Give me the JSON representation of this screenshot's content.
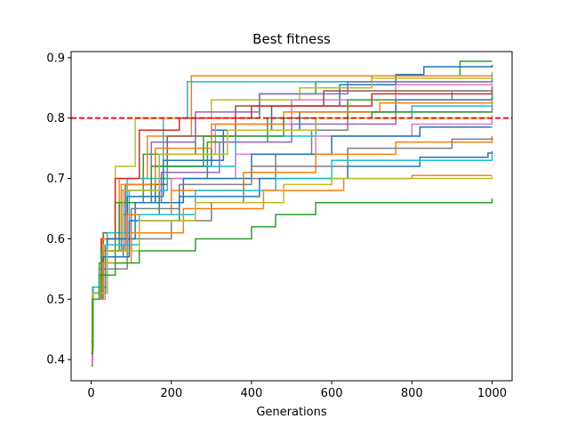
{
  "chart_data": {
    "type": "line",
    "title": "Best fitness",
    "xlabel": "Generations",
    "ylabel": "",
    "xlim": [
      -50,
      1050
    ],
    "ylim": [
      0.365,
      0.91
    ],
    "xticks": [
      0,
      200,
      400,
      600,
      800,
      1000
    ],
    "yticks": [
      0.4,
      0.5,
      0.6,
      0.7,
      0.8,
      0.9
    ],
    "xtick_labels": [
      "0",
      "200",
      "400",
      "600",
      "800",
      "1000"
    ],
    "ytick_labels": [
      "0.4",
      "0.5",
      "0.6",
      "0.7",
      "0.8",
      "0.9"
    ],
    "grid": false,
    "legend": "none",
    "threshold": {
      "y": 0.8,
      "color": "#ff0000",
      "style": "dashed"
    },
    "palette": [
      "#1f77b4",
      "#ff7f0e",
      "#2ca02c",
      "#d62728",
      "#9467bd",
      "#8c564b",
      "#e377c2",
      "#7f7f7f",
      "#bcbd22",
      "#17becf"
    ],
    "series": [
      {
        "color": "#2ca02c",
        "points": [
          [
            0,
            0.42
          ],
          [
            3,
            0.5
          ],
          [
            20,
            0.56
          ],
          [
            60,
            0.66
          ],
          [
            130,
            0.74
          ],
          [
            260,
            0.8
          ],
          [
            420,
            0.84
          ],
          [
            560,
            0.86
          ],
          [
            700,
            0.87
          ],
          [
            920,
            0.894
          ],
          [
            1000,
            0.894
          ]
        ]
      },
      {
        "color": "#1f77b4",
        "points": [
          [
            0,
            0.41
          ],
          [
            4,
            0.51
          ],
          [
            30,
            0.58
          ],
          [
            80,
            0.66
          ],
          [
            160,
            0.72
          ],
          [
            300,
            0.78
          ],
          [
            450,
            0.82
          ],
          [
            620,
            0.855
          ],
          [
            760,
            0.872
          ],
          [
            830,
            0.885
          ],
          [
            1000,
            0.888
          ]
        ]
      },
      {
        "color": "#ff7f0e",
        "points": [
          [
            0,
            0.4
          ],
          [
            3,
            0.5
          ],
          [
            25,
            0.6
          ],
          [
            70,
            0.7
          ],
          [
            140,
            0.77
          ],
          [
            250,
            0.87
          ],
          [
            1000,
            0.876
          ]
        ]
      },
      {
        "color": "#17becf",
        "points": [
          [
            0,
            0.43
          ],
          [
            5,
            0.52
          ],
          [
            40,
            0.6
          ],
          [
            90,
            0.7
          ],
          [
            180,
            0.8
          ],
          [
            240,
            0.86
          ],
          [
            1000,
            0.872
          ]
        ]
      },
      {
        "color": "#bcbd22",
        "points": [
          [
            0,
            0.42
          ],
          [
            4,
            0.51
          ],
          [
            30,
            0.6
          ],
          [
            60,
            0.72
          ],
          [
            110,
            0.8
          ],
          [
            300,
            0.83
          ],
          [
            520,
            0.85
          ],
          [
            700,
            0.866
          ],
          [
            1000,
            0.868
          ]
        ]
      },
      {
        "color": "#9467bd",
        "points": [
          [
            0,
            0.41
          ],
          [
            3,
            0.5
          ],
          [
            28,
            0.58
          ],
          [
            75,
            0.68
          ],
          [
            150,
            0.76
          ],
          [
            260,
            0.81
          ],
          [
            420,
            0.84
          ],
          [
            640,
            0.86
          ],
          [
            1000,
            0.863
          ]
        ]
      },
      {
        "color": "#e377c2",
        "points": [
          [
            0,
            0.4
          ],
          [
            4,
            0.51
          ],
          [
            35,
            0.59
          ],
          [
            90,
            0.67
          ],
          [
            170,
            0.74
          ],
          [
            310,
            0.79
          ],
          [
            500,
            0.83
          ],
          [
            760,
            0.855
          ],
          [
            1000,
            0.858
          ]
        ]
      },
      {
        "color": "#8c564b",
        "points": [
          [
            0,
            0.42
          ],
          [
            5,
            0.52
          ],
          [
            30,
            0.61
          ],
          [
            85,
            0.69
          ],
          [
            190,
            0.77
          ],
          [
            360,
            0.82
          ],
          [
            580,
            0.845
          ],
          [
            1000,
            0.853
          ]
        ]
      },
      {
        "color": "#7f7f7f",
        "points": [
          [
            0,
            0.39
          ],
          [
            3,
            0.5
          ],
          [
            20,
            0.55
          ],
          [
            90,
            0.6
          ],
          [
            200,
            0.63
          ],
          [
            300,
            0.66
          ],
          [
            380,
            0.7
          ],
          [
            460,
            0.74
          ],
          [
            550,
            0.78
          ],
          [
            640,
            0.81
          ],
          [
            760,
            0.83
          ],
          [
            900,
            0.845
          ],
          [
            1000,
            0.85
          ]
        ]
      },
      {
        "color": "#d62728",
        "points": [
          [
            0,
            0.41
          ],
          [
            4,
            0.51
          ],
          [
            25,
            0.6
          ],
          [
            60,
            0.7
          ],
          [
            120,
            0.78
          ],
          [
            220,
            0.8
          ],
          [
            400,
            0.82
          ],
          [
            700,
            0.84
          ],
          [
            1000,
            0.845
          ]
        ]
      },
      {
        "color": "#2ca02c",
        "points": [
          [
            0,
            0.42
          ],
          [
            3,
            0.5
          ],
          [
            30,
            0.57
          ],
          [
            80,
            0.64
          ],
          [
            170,
            0.7
          ],
          [
            290,
            0.76
          ],
          [
            440,
            0.8
          ],
          [
            640,
            0.83
          ],
          [
            1000,
            0.84
          ]
        ]
      },
      {
        "color": "#1f77b4",
        "points": [
          [
            0,
            0.43
          ],
          [
            4,
            0.52
          ],
          [
            35,
            0.59
          ],
          [
            90,
            0.67
          ],
          [
            180,
            0.73
          ],
          [
            330,
            0.78
          ],
          [
            520,
            0.81
          ],
          [
            760,
            0.83
          ],
          [
            1000,
            0.835
          ]
        ]
      },
      {
        "color": "#ff7f0e",
        "points": [
          [
            0,
            0.41
          ],
          [
            3,
            0.51
          ],
          [
            28,
            0.6
          ],
          [
            75,
            0.69
          ],
          [
            160,
            0.75
          ],
          [
            300,
            0.79
          ],
          [
            480,
            0.81
          ],
          [
            720,
            0.825
          ],
          [
            1000,
            0.83
          ]
        ]
      },
      {
        "color": "#17becf",
        "points": [
          [
            0,
            0.42
          ],
          [
            5,
            0.52
          ],
          [
            40,
            0.61
          ],
          [
            95,
            0.68
          ],
          [
            190,
            0.72
          ],
          [
            360,
            0.77
          ],
          [
            560,
            0.8
          ],
          [
            800,
            0.82
          ],
          [
            1000,
            0.825
          ]
        ]
      },
      {
        "color": "#9467bd",
        "points": [
          [
            0,
            0.4
          ],
          [
            4,
            0.51
          ],
          [
            30,
            0.58
          ],
          [
            85,
            0.66
          ],
          [
            175,
            0.71
          ],
          [
            320,
            0.76
          ],
          [
            500,
            0.79
          ],
          [
            760,
            0.81
          ],
          [
            1000,
            0.82
          ]
        ]
      },
      {
        "color": "#2ca02c",
        "points": [
          [
            0,
            0.41
          ],
          [
            3,
            0.5
          ],
          [
            25,
            0.58
          ],
          [
            70,
            0.66
          ],
          [
            150,
            0.72
          ],
          [
            280,
            0.77
          ],
          [
            480,
            0.8
          ],
          [
            700,
            0.81
          ],
          [
            1000,
            0.81
          ]
        ]
      },
      {
        "color": "#bcbd22",
        "points": [
          [
            0,
            0.42
          ],
          [
            4,
            0.51
          ],
          [
            30,
            0.59
          ],
          [
            80,
            0.68
          ],
          [
            170,
            0.74
          ],
          [
            340,
            0.78
          ],
          [
            560,
            0.8
          ],
          [
            1000,
            0.805
          ]
        ]
      },
      {
        "color": "#e377c2",
        "points": [
          [
            0,
            0.4
          ],
          [
            3,
            0.5
          ],
          [
            35,
            0.57
          ],
          [
            95,
            0.64
          ],
          [
            200,
            0.7
          ],
          [
            360,
            0.74
          ],
          [
            560,
            0.77
          ],
          [
            800,
            0.79
          ],
          [
            1000,
            0.8
          ]
        ]
      },
      {
        "color": "#1f77b4",
        "points": [
          [
            0,
            0.42
          ],
          [
            4,
            0.51
          ],
          [
            40,
            0.6
          ],
          [
            110,
            0.66
          ],
          [
            230,
            0.7
          ],
          [
            400,
            0.74
          ],
          [
            600,
            0.77
          ],
          [
            820,
            0.785
          ],
          [
            1000,
            0.785
          ]
        ]
      },
      {
        "color": "#ff7f0e",
        "points": [
          [
            0,
            0.41
          ],
          [
            3,
            0.5
          ],
          [
            30,
            0.58
          ],
          [
            90,
            0.64
          ],
          [
            200,
            0.68
          ],
          [
            380,
            0.71
          ],
          [
            560,
            0.74
          ],
          [
            760,
            0.76
          ],
          [
            1000,
            0.77
          ]
        ]
      },
      {
        "color": "#7f7f7f",
        "points": [
          [
            0,
            0.41
          ],
          [
            4,
            0.51
          ],
          [
            35,
            0.58
          ],
          [
            100,
            0.65
          ],
          [
            220,
            0.69
          ],
          [
            400,
            0.72
          ],
          [
            640,
            0.75
          ],
          [
            900,
            0.765
          ],
          [
            1000,
            0.768
          ]
        ]
      },
      {
        "color": "#1f77b4",
        "points": [
          [
            0,
            0.42
          ],
          [
            3,
            0.5
          ],
          [
            30,
            0.57
          ],
          [
            95,
            0.63
          ],
          [
            220,
            0.67
          ],
          [
            420,
            0.7
          ],
          [
            640,
            0.72
          ],
          [
            820,
            0.735
          ],
          [
            990,
            0.742
          ],
          [
            1000,
            0.745
          ]
        ]
      },
      {
        "color": "#17becf",
        "points": [
          [
            0,
            0.43
          ],
          [
            4,
            0.51
          ],
          [
            40,
            0.59
          ],
          [
            120,
            0.64
          ],
          [
            260,
            0.68
          ],
          [
            460,
            0.7
          ],
          [
            600,
            0.73
          ],
          [
            1000,
            0.74
          ]
        ]
      },
      {
        "color": "#ff7f0e",
        "points": [
          [
            0,
            0.41
          ],
          [
            3,
            0.5
          ],
          [
            30,
            0.56
          ],
          [
            100,
            0.61
          ],
          [
            230,
            0.65
          ],
          [
            430,
            0.68
          ],
          [
            630,
            0.7
          ],
          [
            800,
            0.705
          ],
          [
            1000,
            0.705
          ]
        ]
      },
      {
        "color": "#bcbd22",
        "points": [
          [
            0,
            0.42
          ],
          [
            4,
            0.51
          ],
          [
            40,
            0.58
          ],
          [
            120,
            0.63
          ],
          [
            260,
            0.66
          ],
          [
            480,
            0.69
          ],
          [
            600,
            0.7
          ],
          [
            1000,
            0.703
          ]
        ]
      },
      {
        "color": "#2ca02c",
        "points": [
          [
            0,
            0.41
          ],
          [
            3,
            0.5
          ],
          [
            20,
            0.54
          ],
          [
            60,
            0.56
          ],
          [
            120,
            0.58
          ],
          [
            260,
            0.6
          ],
          [
            400,
            0.62
          ],
          [
            460,
            0.64
          ],
          [
            560,
            0.66
          ],
          [
            1000,
            0.667
          ]
        ]
      }
    ]
  }
}
